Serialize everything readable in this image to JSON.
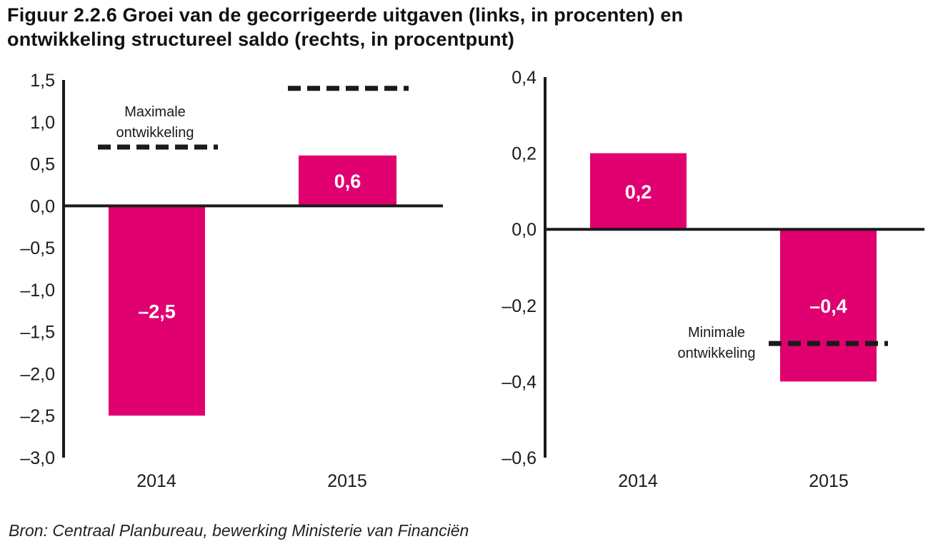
{
  "figure": {
    "title_line1": "Figuur 2.2.6 Groei van de gecorrigeerde uitgaven (links, in procenten) en",
    "title_line2": "ontwikkeling structureel saldo (rechts, in procentpunt)",
    "source": "Bron: Centraal Planbureau, bewerking Ministerie van Financiën"
  },
  "colors": {
    "bar": "#e0006f",
    "axis": "#1a1a1a",
    "label": "#ffffff"
  },
  "chart_data": [
    {
      "type": "bar",
      "title": "Groei van de gecorrigeerde uitgaven",
      "ylabel": "in procenten",
      "categories": [
        "2014",
        "2015"
      ],
      "values": [
        -2.5,
        0.6
      ],
      "value_labels": [
        "–2,5",
        "0,6"
      ],
      "ylim": [
        -3.0,
        1.5
      ],
      "yticks": [
        1.5,
        1.0,
        0.5,
        0.0,
        -0.5,
        -1.0,
        -1.5,
        -2.0,
        -2.5,
        -3.0
      ],
      "ytick_labels": [
        "1,5",
        "1,0",
        "0,5",
        "0,0",
        "–0,5",
        "–1,0",
        "–1,5",
        "–2,0",
        "–2,5",
        "–3,0"
      ],
      "reference": {
        "name": "Maximale ontwikkeling",
        "label_lines": [
          "Maximale",
          "ontwikkeling"
        ],
        "values": [
          0.7,
          1.4
        ],
        "labeled_category": "2014"
      }
    },
    {
      "type": "bar",
      "title": "Ontwikkeling structureel saldo",
      "ylabel": "in procentpunt",
      "categories": [
        "2014",
        "2015"
      ],
      "values": [
        0.2,
        -0.4
      ],
      "value_labels": [
        "0,2",
        "–0,4"
      ],
      "ylim": [
        -0.6,
        0.4
      ],
      "yticks": [
        0.4,
        0.2,
        0.0,
        -0.2,
        -0.4,
        -0.6
      ],
      "ytick_labels": [
        "0,4",
        "0,2",
        "0,0",
        "–0,2",
        "–0,4",
        "–0,6"
      ],
      "reference": {
        "name": "Minimale ontwikkeling",
        "label_lines": [
          "Minimale",
          "ontwikkeling"
        ],
        "values": [
          -0.3
        ],
        "reference_categories": [
          "2015"
        ],
        "labeled_category": "2015"
      }
    }
  ]
}
